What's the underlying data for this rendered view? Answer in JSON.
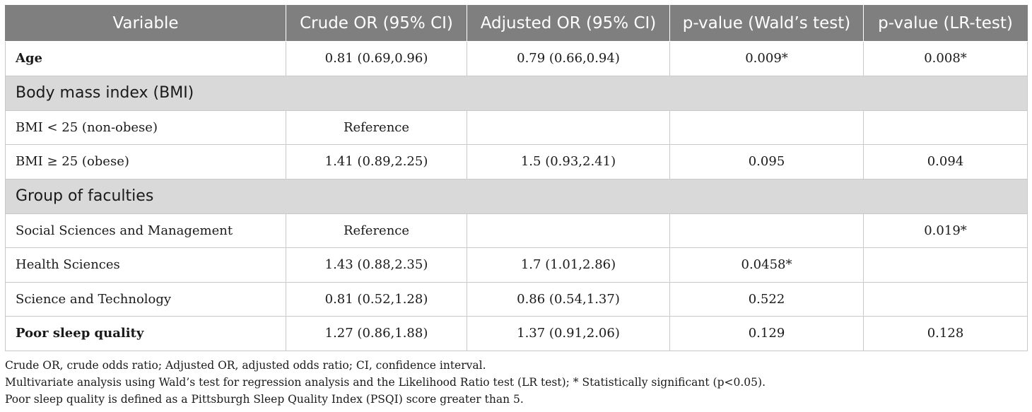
{
  "table": {
    "headers": [
      "Variable",
      "Crude OR (95% CI)",
      "Adjusted OR (95% CI)",
      "p-value (Wald’s test)",
      "p-value (LR-test)"
    ],
    "rows": [
      {
        "type": "data",
        "bold": true,
        "cells": [
          "Age",
          "0.81 (0.69,0.96)",
          "0.79 (0.66,0.94)",
          "0.009*",
          "0.008*"
        ]
      },
      {
        "type": "section",
        "label": "Body mass index (BMI)"
      },
      {
        "type": "data",
        "bold": false,
        "cells": [
          "BMI < 25 (non-obese)",
          "Reference",
          "",
          "",
          ""
        ]
      },
      {
        "type": "data",
        "bold": false,
        "cells": [
          "BMI ≥ 25 (obese)",
          "1.41 (0.89,2.25)",
          "1.5 (0.93,2.41)",
          "0.095",
          "0.094"
        ]
      },
      {
        "type": "section",
        "label": "Group of faculties"
      },
      {
        "type": "data",
        "bold": false,
        "cells": [
          "Social Sciences and Management",
          "Reference",
          "",
          "",
          "0.019*"
        ]
      },
      {
        "type": "data",
        "bold": false,
        "cells": [
          "Health Sciences",
          "1.43 (0.88,2.35)",
          "1.7 (1.01,2.86)",
          "0.0458*",
          ""
        ]
      },
      {
        "type": "data",
        "bold": false,
        "cells": [
          "Science and Technology",
          "0.81 (0.52,1.28)",
          "0.86 (0.54,1.37)",
          "0.522",
          ""
        ]
      },
      {
        "type": "data",
        "bold": true,
        "cells": [
          "Poor sleep quality",
          "1.27 (0.86,1.88)",
          "1.37 (0.91,2.06)",
          "0.129",
          "0.128"
        ]
      }
    ]
  },
  "notes": [
    "Crude OR, crude odds ratio; Adjusted OR, adjusted odds ratio; CI, confidence interval.",
    "Multivariate analysis using Wald’s test for regression analysis and the Likelihood Ratio test (LR test); * Statistically significant (p<0.05).",
    "Poor sleep quality is defined as a Pittsburgh Sleep Quality Index (PSQI) score greater than 5."
  ],
  "colors": {
    "header_bg": "#7f7f7f",
    "section_bg": "#d9d9d9",
    "border": "#c9c9c9"
  }
}
